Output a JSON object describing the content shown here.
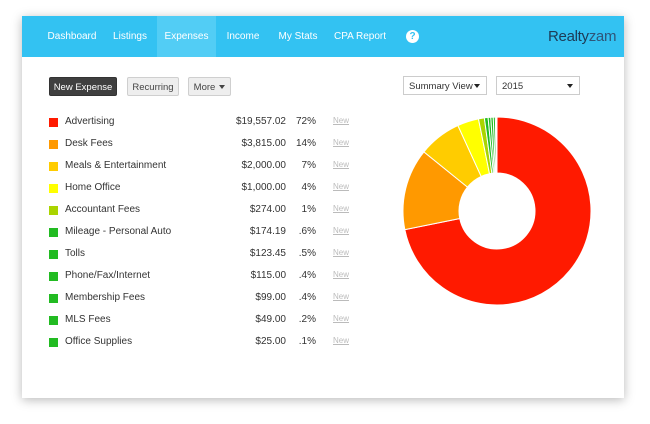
{
  "nav": {
    "items": [
      {
        "label": "Dashboard"
      },
      {
        "label": "Listings"
      },
      {
        "label": "Expenses"
      },
      {
        "label": "Income"
      },
      {
        "label": "My Stats"
      },
      {
        "label": "CPA Report"
      }
    ],
    "active": "Expenses",
    "help_label": "?",
    "brand_part1": "Realty",
    "brand_part2": "zam"
  },
  "toolbar": {
    "new_expense_label": "New Expense",
    "recurring_label": "Recurring",
    "more_label": "More"
  },
  "filters": {
    "view_value": "Summary View",
    "year_value": "2015"
  },
  "expenses": [
    {
      "label": "Advertising",
      "amount": "$19,557.02",
      "pct": "72%",
      "new": "New",
      "color": "#ff1a00",
      "value": 19557.02
    },
    {
      "label": "Desk Fees",
      "amount": "$3,815.00",
      "pct": "14%",
      "new": "New",
      "color": "#ff9900",
      "value": 3815.0
    },
    {
      "label": "Meals & Entertainment",
      "amount": "$2,000.00",
      "pct": "7%",
      "new": "New",
      "color": "#ffcc00",
      "value": 2000.0
    },
    {
      "label": "Home Office",
      "amount": "$1,000.00",
      "pct": "4%",
      "new": "New",
      "color": "#ffff00",
      "value": 1000.0
    },
    {
      "label": "Accountant Fees",
      "amount": "$274.00",
      "pct": "1%",
      "new": "New",
      "color": "#aad400",
      "value": 274.0
    },
    {
      "label": "Mileage - Personal Auto",
      "amount": "$174.19",
      "pct": ".6%",
      "new": "New",
      "color": "#22bb22",
      "value": 174.19
    },
    {
      "label": "Tolls",
      "amount": "$123.45",
      "pct": ".5%",
      "new": "New",
      "color": "#22bb22",
      "value": 123.45
    },
    {
      "label": "Phone/Fax/Internet",
      "amount": "$115.00",
      "pct": ".4%",
      "new": "New",
      "color": "#22bb22",
      "value": 115.0
    },
    {
      "label": "Membership Fees",
      "amount": "$99.00",
      "pct": ".4%",
      "new": "New",
      "color": "#22bb22",
      "value": 99.0
    },
    {
      "label": "MLS Fees",
      "amount": "$49.00",
      "pct": ".2%",
      "new": "New",
      "color": "#22bb22",
      "value": 49.0
    },
    {
      "label": "Office Supplies",
      "amount": "$25.00",
      "pct": ".1%",
      "new": "New",
      "color": "#22bb22",
      "value": 25.0
    }
  ]
}
